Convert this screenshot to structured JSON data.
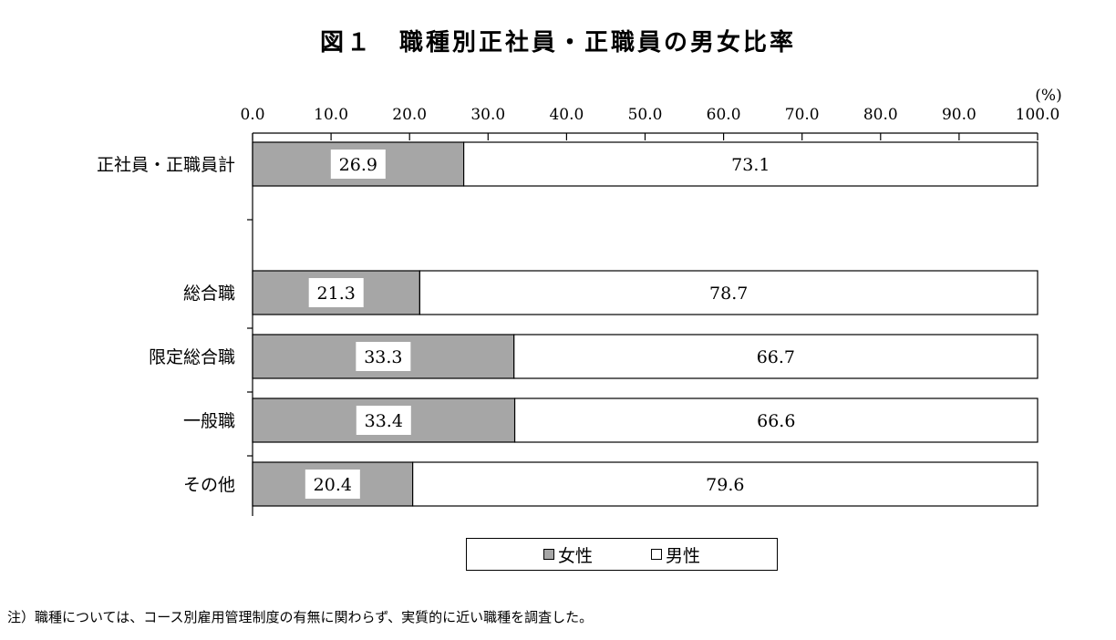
{
  "chart_data": {
    "type": "bar",
    "orientation": "horizontal",
    "stacked": true,
    "title": "図１　職種別正社員・正職員の男女比率",
    "unit_label": "(%)",
    "xlim": [
      0,
      100
    ],
    "x_ticks": [
      "0.0",
      "10.0",
      "20.0",
      "30.0",
      "40.0",
      "50.0",
      "60.0",
      "70.0",
      "80.0",
      "90.0",
      "100.0"
    ],
    "categories": [
      "正社員・正職員計",
      "総合職",
      "限定総合職",
      "一般職",
      "その他"
    ],
    "series": [
      {
        "name": "女性",
        "color": "#a6a6a6",
        "values": [
          26.9,
          21.3,
          33.3,
          33.4,
          20.4
        ],
        "labels": [
          "26.9",
          "21.3",
          "33.3",
          "33.4",
          "20.4"
        ]
      },
      {
        "name": "男性",
        "color": "#ffffff",
        "values": [
          73.1,
          78.7,
          66.7,
          66.6,
          79.6
        ],
        "labels": [
          "73.1",
          "78.7",
          "66.7",
          "66.6",
          "79.6"
        ]
      }
    ],
    "legend_position": "bottom",
    "grid": false
  },
  "legend": {
    "female_label": "女性",
    "male_label": "男性"
  },
  "note": "注）職種については、コース別雇用管理制度の有無に関わらず、実質的に近い職種を調査した。"
}
